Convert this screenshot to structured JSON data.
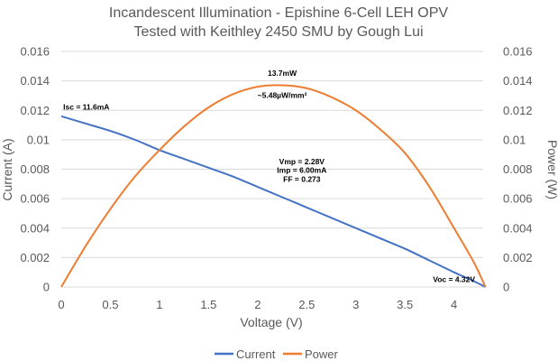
{
  "chart_data": {
    "type": "line",
    "title": "Incandescent Illumination - Epishine 6-Cell LEH OPV",
    "subtitle": "Tested with Keithley 2450 SMU by Gough Lui",
    "xlabel": "Voltage (V)",
    "ylabel_left": "Current (A)",
    "ylabel_right": "Power (W)",
    "xlim": [
      0,
      4.32
    ],
    "x_ticks": [
      "0",
      "0.5",
      "1",
      "1.5",
      "2",
      "2.5",
      "3",
      "3.5",
      "4"
    ],
    "ylim": [
      0,
      0.016
    ],
    "y_ticks": [
      "0",
      "0.002",
      "0.004",
      "0.006",
      "0.008",
      "0.01",
      "0.012",
      "0.014",
      "0.016"
    ],
    "grid": true,
    "legend_position": "bottom",
    "series": [
      {
        "name": "Current",
        "color": "#4472c4",
        "axis": "left",
        "x": [
          0,
          0.25,
          0.5,
          0.75,
          1.0,
          1.25,
          1.5,
          1.75,
          2.0,
          2.25,
          2.5,
          2.75,
          3.0,
          3.25,
          3.5,
          3.75,
          4.0,
          4.2,
          4.32
        ],
        "y": [
          0.0116,
          0.0111,
          0.0106,
          0.01,
          0.0093,
          0.0087,
          0.0081,
          0.0075,
          0.0068,
          0.0061,
          0.0054,
          0.0047,
          0.004,
          0.0033,
          0.0026,
          0.0018,
          0.001,
          0.0004,
          0.0
        ]
      },
      {
        "name": "Power",
        "color": "#ed7d31",
        "axis": "right",
        "x": [
          0,
          0.25,
          0.5,
          0.75,
          1.0,
          1.25,
          1.5,
          1.75,
          2.0,
          2.25,
          2.5,
          2.75,
          3.0,
          3.25,
          3.5,
          3.75,
          4.0,
          4.2,
          4.32
        ],
        "y": [
          0.0,
          0.0028,
          0.0053,
          0.0075,
          0.0093,
          0.0109,
          0.0122,
          0.0131,
          0.0136,
          0.0137,
          0.0135,
          0.0129,
          0.012,
          0.0107,
          0.0091,
          0.0068,
          0.004,
          0.0017,
          0.0
        ]
      }
    ],
    "annotations": [
      {
        "text": "13.7mW",
        "x": 2.25,
        "y": 0.01435
      },
      {
        "text": "~5.48µW/mm²",
        "x": 2.25,
        "y": 0.01285
      },
      {
        "text": "Isc = 11.6mA",
        "x": 0.02,
        "y": 0.01205
      },
      {
        "text": "Vmp = 2.28V",
        "x": 2.45,
        "y": 0.00835
      },
      {
        "text": "Imp = 6.00mA",
        "x": 2.45,
        "y": 0.00775
      },
      {
        "text": "FF = 0.273",
        "x": 2.45,
        "y": 0.00715
      },
      {
        "text": "Voc = 4.32V",
        "x": 4.0,
        "y": 0.00035
      }
    ]
  }
}
